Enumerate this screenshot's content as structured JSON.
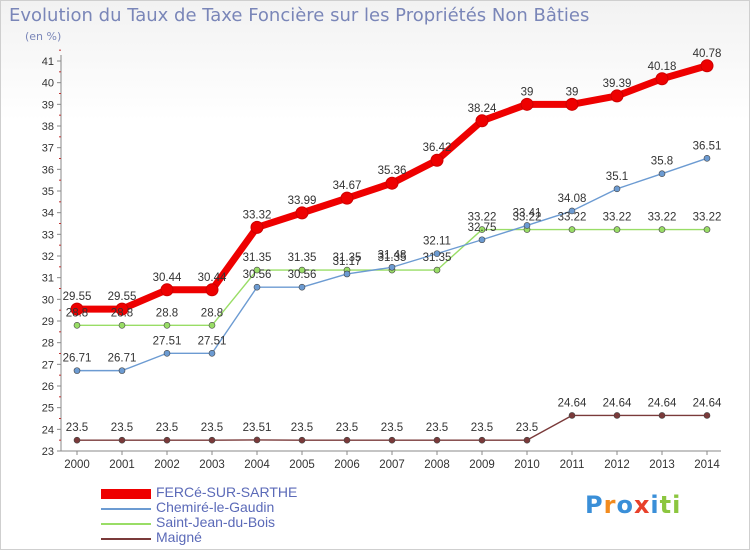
{
  "header": {
    "title": "Evolution du Taux de Taxe Foncière sur les Propriétés Non Bâties",
    "unit": "(en %)"
  },
  "logo": {
    "text": "Proxiti"
  },
  "chart_data": {
    "type": "line",
    "title": "Evolution du Taux de Taxe Foncière sur les Propriétés Non Bâties",
    "ylabel": "(en %)",
    "xlabel": "",
    "x": [
      "2000",
      "2001",
      "2002",
      "2003",
      "2004",
      "2005",
      "2006",
      "2007",
      "2008",
      "2009",
      "2010",
      "2011",
      "2012",
      "2013",
      "2014"
    ],
    "ylim": [
      23,
      41
    ],
    "yticks": [
      23,
      24,
      25,
      26,
      27,
      28,
      29,
      30,
      31,
      32,
      33,
      34,
      35,
      36,
      37,
      38,
      39,
      40,
      41
    ],
    "grid": false,
    "legend": "bottom-left",
    "series": [
      {
        "name": "FERCé-SUR-SARTHE",
        "color": "#ee0000",
        "values": [
          29.55,
          29.55,
          30.44,
          30.44,
          33.32,
          33.99,
          34.67,
          35.36,
          36.42,
          38.24,
          39,
          39,
          39.39,
          40.18,
          40.78
        ],
        "labels": [
          "29.55",
          "29.55",
          "30.44",
          "30.44",
          "33.32",
          "33.99",
          "34.67",
          "35.36",
          "36.42",
          "38.24",
          "39",
          "39",
          "39.39",
          "40.18",
          "40.78"
        ]
      },
      {
        "name": "Chemiré-le-Gaudin",
        "color": "#6c9bd2",
        "values": [
          26.71,
          26.71,
          27.51,
          27.51,
          30.56,
          30.56,
          31.17,
          31.48,
          32.11,
          32.75,
          33.41,
          34.08,
          35.1,
          35.8,
          36.51
        ],
        "labels": [
          "26.71",
          "26.71",
          "27.51",
          "27.51",
          "30.56",
          "30.56",
          "31.17",
          "31.48",
          "32.11",
          "32.75",
          "33.41",
          "34.08",
          "35.1",
          "35.8",
          "36.51"
        ]
      },
      {
        "name": "Saint-Jean-du-Bois",
        "color": "#99dd66",
        "values": [
          28.8,
          28.8,
          28.8,
          28.8,
          31.35,
          31.35,
          31.35,
          31.35,
          31.35,
          33.22,
          33.22,
          33.22,
          33.22,
          33.22,
          33.22
        ],
        "labels": [
          "28.8",
          "28.8",
          "28.8",
          "28.8",
          "31.35",
          "31.35",
          "31.35",
          "31.35",
          "31.35",
          "33.22",
          "33.22",
          "33.22",
          "33.22",
          "33.22",
          "33.22"
        ]
      },
      {
        "name": "Maigné",
        "color": "#7a3a3a",
        "values": [
          23.5,
          23.5,
          23.5,
          23.5,
          23.51,
          23.5,
          23.5,
          23.5,
          23.5,
          23.5,
          23.5,
          24.64,
          24.64,
          24.64,
          24.64
        ],
        "labels": [
          "23.5",
          "23.5",
          "23.5",
          "23.5",
          "23.51",
          "23.5",
          "23.5",
          "23.5",
          "23.5",
          "23.5",
          "23.5",
          "24.64",
          "24.64",
          "24.64",
          "24.64"
        ]
      }
    ]
  }
}
